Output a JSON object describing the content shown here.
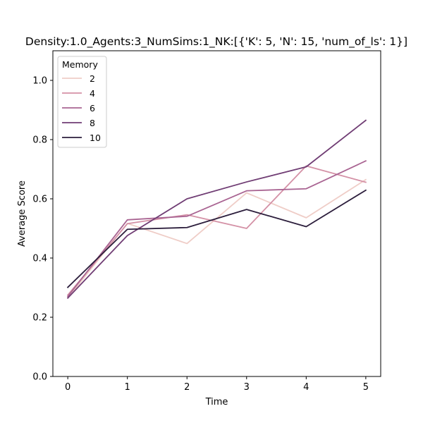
{
  "chart_data": {
    "type": "line",
    "title": "Density:1.0_Agents:3_NumSims:1_NK:[{'K': 5, 'N': 15, 'num_of_ls': 1}]",
    "xlabel": "Time",
    "ylabel": "Average Score",
    "x": [
      0,
      1,
      2,
      3,
      4,
      5
    ],
    "x_ticks": [
      "0",
      "1",
      "2",
      "3",
      "4",
      "5"
    ],
    "y_ticks": [
      "0.0",
      "0.2",
      "0.4",
      "0.6",
      "0.8",
      "1.0"
    ],
    "xlim": [
      -0.25,
      5.25
    ],
    "ylim": [
      0,
      1.1
    ],
    "grid": false,
    "legend": {
      "title": "Memory",
      "placement": "top-left"
    },
    "series": [
      {
        "name": "2",
        "color": "#efcdc7",
        "values": [
          0.265,
          0.517,
          0.449,
          0.62,
          0.536,
          0.665
        ]
      },
      {
        "name": "4",
        "color": "#d491a6",
        "values": [
          0.275,
          0.516,
          0.546,
          0.5,
          0.711,
          0.656
        ]
      },
      {
        "name": "6",
        "color": "#a96492",
        "values": [
          0.27,
          0.529,
          0.541,
          0.627,
          0.634,
          0.728
        ]
      },
      {
        "name": "8",
        "color": "#703d74",
        "values": [
          0.265,
          0.476,
          0.6,
          0.657,
          0.708,
          0.865
        ]
      },
      {
        "name": "10",
        "color": "#2c1e3c",
        "values": [
          0.301,
          0.497,
          0.503,
          0.564,
          0.506,
          0.629
        ]
      }
    ]
  }
}
